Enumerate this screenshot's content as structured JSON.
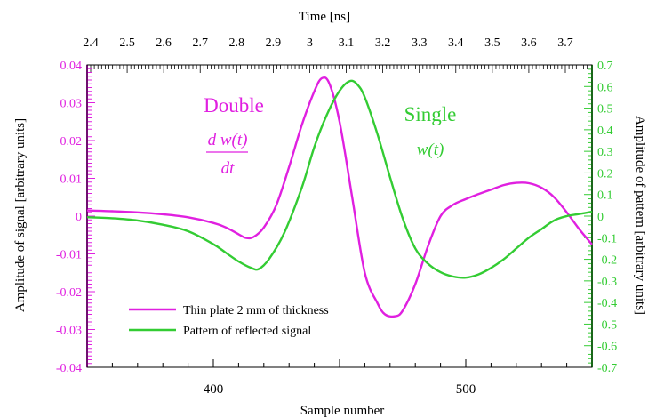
{
  "chart_data": {
    "type": "line",
    "top_axis_label": "Time [ns]",
    "top_ticks": [
      2.4,
      2.5,
      2.6,
      2.7,
      2.8,
      2.9,
      3,
      3.1,
      3.2,
      3.3,
      3.4,
      3.5,
      3.6,
      3.7
    ],
    "top_tick_labels": [
      "2.4",
      "2.5",
      "2.6",
      "2.7",
      "2.8",
      "2.9",
      "3",
      "3.1",
      "3.2",
      "3.3",
      "3.4",
      "3.5",
      "3.6",
      "3.7"
    ],
    "xlabel": "Sample number",
    "xlim": [
      350,
      550
    ],
    "x_ticks": [
      400,
      500
    ],
    "x_tick_labels": [
      "400",
      "500"
    ],
    "ylabel_left": "Amplitude of signal [arbitrary units]",
    "ylim_left": [
      -0.04,
      0.04
    ],
    "y_ticks_left": [
      -0.04,
      -0.03,
      -0.02,
      -0.01,
      0,
      0.01,
      0.02,
      0.03,
      0.04
    ],
    "y_tick_labels_left": [
      "-0.04",
      "-0.03",
      "-0.02",
      "-0.01",
      "0",
      "0.01",
      "0.02",
      "0.03",
      "0.04"
    ],
    "ylabel_right": "Amplitude of pattern [arbitrary units]",
    "ylim_right": [
      -0.7,
      0.7
    ],
    "y_ticks_right": [
      -0.7,
      -0.6,
      -0.5,
      -0.4,
      -0.3,
      -0.2,
      -0.1,
      0,
      0.1,
      0.2,
      0.3,
      0.4,
      0.5,
      0.6,
      0.7
    ],
    "y_tick_labels_right": [
      "-0.7",
      "-0.6",
      "-0.5",
      "-0.4",
      "-0.3",
      "-0.2",
      "-0.1",
      "0",
      "0.1",
      "0.2",
      "0.3",
      "0.4",
      "0.5",
      "0.6",
      "0.7"
    ],
    "series": [
      {
        "name": "Thin plate 2 mm of thickness",
        "axis": "left",
        "color": "#e020e0",
        "x": [
          350,
          360,
          370,
          380,
          390,
          400,
          405,
          410,
          413,
          416,
          420,
          425,
          430,
          435,
          440,
          443,
          446,
          450,
          455,
          460,
          465,
          468,
          472,
          475,
          480,
          485,
          490,
          495,
          500,
          505,
          510,
          515,
          520,
          525,
          530,
          535,
          540,
          545,
          550
        ],
        "y": [
          0.0015,
          0.0013,
          0.001,
          0.0005,
          -0.0003,
          -0.0018,
          -0.003,
          -0.0048,
          -0.0058,
          -0.0055,
          -0.003,
          0.003,
          0.013,
          0.024,
          0.033,
          0.0365,
          0.035,
          0.025,
          0.005,
          -0.015,
          -0.023,
          -0.026,
          -0.0265,
          -0.025,
          -0.018,
          -0.008,
          0.0,
          0.003,
          0.0045,
          0.0058,
          0.007,
          0.0082,
          0.0088,
          0.0087,
          0.0075,
          0.005,
          0.001,
          -0.0035,
          -0.0075
        ]
      },
      {
        "name": "Pattern of reflected signal",
        "axis": "right",
        "color": "#33cc33",
        "x": [
          350,
          360,
          370,
          380,
          390,
          400,
          405,
          410,
          415,
          418,
          422,
          428,
          435,
          440,
          445,
          450,
          454,
          457,
          460,
          465,
          470,
          475,
          480,
          485,
          490,
          495,
          500,
          505,
          510,
          515,
          520,
          525,
          530,
          535,
          540,
          545,
          550
        ],
        "y": [
          -0.005,
          -0.01,
          -0.02,
          -0.04,
          -0.07,
          -0.13,
          -0.17,
          -0.21,
          -0.24,
          -0.245,
          -0.2,
          -0.08,
          0.13,
          0.32,
          0.47,
          0.58,
          0.625,
          0.61,
          0.55,
          0.38,
          0.18,
          -0.01,
          -0.15,
          -0.22,
          -0.26,
          -0.28,
          -0.285,
          -0.27,
          -0.24,
          -0.2,
          -0.15,
          -0.1,
          -0.06,
          -0.02,
          0.0,
          0.01,
          0.02
        ]
      }
    ],
    "annotations": {
      "double": "Double",
      "double_formula_num": "d w(t)",
      "double_formula_den": "dt",
      "single": "Single",
      "single_formula": "w(t)"
    },
    "legend_position": "bottom-left",
    "grid": false,
    "colors": {
      "signal_axis": "#e020e0",
      "pattern_axis": "#33cc33",
      "frame": "#000000"
    }
  }
}
